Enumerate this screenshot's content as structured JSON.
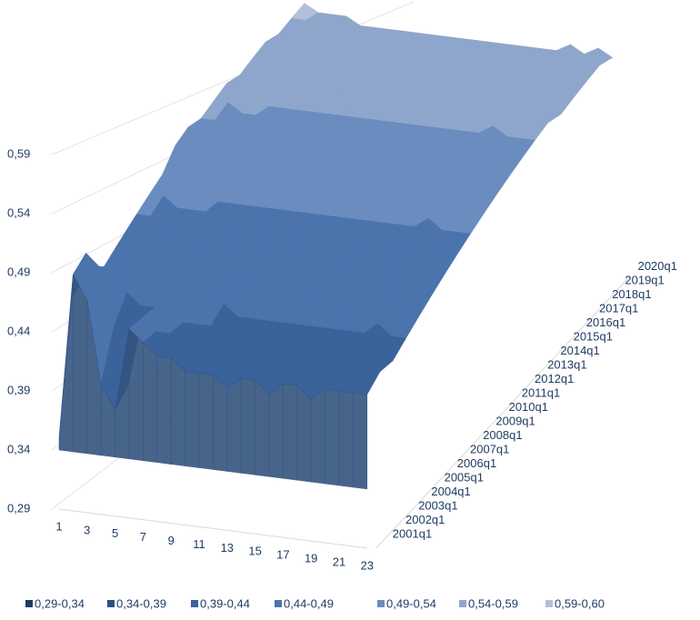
{
  "chart_data": {
    "type": "surface",
    "x": [
      1,
      null,
      3,
      null,
      5,
      null,
      7,
      null,
      9,
      null,
      11,
      null,
      13,
      null,
      15,
      null,
      17,
      null,
      19,
      null,
      21,
      null,
      23
    ],
    "y": [
      "2001q1",
      "2002q1",
      "2003q1",
      "2004q1",
      "2005q1",
      "2006q1",
      "2007q1",
      "2008q1",
      "2009q1",
      "2010q1",
      "2011q1",
      "2012q1",
      "2013q1",
      "2014q1",
      "2015q1",
      "2016q1",
      "2017q1",
      "2018q1",
      "2019q1",
      "2020q1"
    ],
    "zlim": [
      0.29,
      0.6
    ],
    "zticks": [
      {
        "value": 0.29,
        "label": "0,29"
      },
      {
        "value": 0.34,
        "label": "0,34"
      },
      {
        "value": 0.39,
        "label": "0,39"
      },
      {
        "value": 0.44,
        "label": "0,44"
      },
      {
        "value": 0.49,
        "label": "0,49"
      },
      {
        "value": 0.54,
        "label": "0,54"
      },
      {
        "value": 0.59,
        "label": "0,59"
      }
    ],
    "grid": true,
    "legend_position": "bottom",
    "bands": [
      {
        "label": "0,29-0,34",
        "from": 0.29,
        "to": 0.34,
        "color": "#1f3b63"
      },
      {
        "label": "0,34-0,39",
        "from": 0.34,
        "to": 0.39,
        "color": "#2b4f82"
      },
      {
        "label": "0,39-0,44",
        "from": 0.39,
        "to": 0.44,
        "color": "#3a629b"
      },
      {
        "label": "0,44-0,49",
        "from": 0.44,
        "to": 0.49,
        "color": "#4b74ad"
      },
      {
        "label": "0,49-0,54",
        "from": 0.49,
        "to": 0.54,
        "color": "#6a8cbf"
      },
      {
        "label": "0,54-0,59",
        "from": 0.54,
        "to": 0.59,
        "color": "#8fa6cc"
      },
      {
        "label": "0,59-0,60",
        "from": 0.59,
        "to": 0.6,
        "color": "#b3bfd6"
      }
    ],
    "z": [
      [
        0.35,
        0.49,
        0.47,
        0.4,
        0.38,
        0.45,
        0.44,
        0.43,
        0.43,
        0.42,
        0.42,
        0.42,
        0.41,
        0.42,
        0.42,
        0.41,
        0.42,
        0.42,
        0.41,
        0.42,
        0.42,
        0.42,
        0.42
      ],
      [
        0.46,
        0.5,
        0.46,
        0.44,
        0.39,
        0.45,
        0.44,
        0.44,
        0.43,
        0.43,
        0.43,
        0.42,
        0.42,
        0.43,
        0.42,
        0.42,
        0.43,
        0.42,
        0.42,
        0.43,
        0.42,
        0.43,
        0.43
      ],
      [
        0.47,
        0.48,
        0.45,
        0.46,
        0.45,
        0.45,
        0.45,
        0.44,
        0.44,
        0.44,
        0.43,
        0.43,
        0.43,
        0.43,
        0.43,
        0.43,
        0.43,
        0.43,
        0.43,
        0.43,
        0.43,
        0.44,
        0.43
      ],
      [
        0.46,
        0.47,
        0.46,
        0.47,
        0.46,
        0.46,
        0.45,
        0.45,
        0.45,
        0.45,
        0.44,
        0.44,
        0.44,
        0.44,
        0.44,
        0.44,
        0.44,
        0.44,
        0.44,
        0.44,
        0.45,
        0.44,
        0.44
      ],
      [
        0.47,
        0.48,
        0.47,
        0.47,
        0.47,
        0.46,
        0.46,
        0.46,
        0.46,
        0.45,
        0.45,
        0.45,
        0.45,
        0.45,
        0.45,
        0.45,
        0.45,
        0.45,
        0.45,
        0.45,
        0.46,
        0.45,
        0.45
      ],
      [
        0.48,
        0.48,
        0.48,
        0.47,
        0.47,
        0.47,
        0.47,
        0.47,
        0.46,
        0.46,
        0.46,
        0.46,
        0.46,
        0.46,
        0.46,
        0.46,
        0.46,
        0.46,
        0.46,
        0.46,
        0.47,
        0.46,
        0.46
      ],
      [
        0.49,
        0.49,
        0.48,
        0.48,
        0.48,
        0.48,
        0.47,
        0.47,
        0.47,
        0.47,
        0.47,
        0.47,
        0.47,
        0.47,
        0.47,
        0.47,
        0.47,
        0.47,
        0.47,
        0.48,
        0.47,
        0.47,
        0.47
      ],
      [
        0.5,
        0.5,
        0.49,
        0.49,
        0.49,
        0.48,
        0.48,
        0.48,
        0.48,
        0.48,
        0.48,
        0.48,
        0.48,
        0.48,
        0.48,
        0.48,
        0.48,
        0.48,
        0.48,
        0.49,
        0.48,
        0.48,
        0.48
      ],
      [
        0.51,
        0.51,
        0.5,
        0.5,
        0.49,
        0.49,
        0.49,
        0.49,
        0.49,
        0.49,
        0.49,
        0.49,
        0.49,
        0.49,
        0.49,
        0.49,
        0.49,
        0.49,
        0.49,
        0.5,
        0.49,
        0.49,
        0.49
      ],
      [
        0.53,
        0.52,
        0.51,
        0.51,
        0.5,
        0.5,
        0.5,
        0.5,
        0.5,
        0.5,
        0.5,
        0.5,
        0.5,
        0.5,
        0.5,
        0.5,
        0.5,
        0.5,
        0.5,
        0.51,
        0.5,
        0.5,
        0.5
      ],
      [
        0.54,
        0.53,
        0.52,
        0.52,
        0.51,
        0.51,
        0.51,
        0.51,
        0.51,
        0.51,
        0.51,
        0.51,
        0.51,
        0.51,
        0.51,
        0.51,
        0.51,
        0.51,
        0.51,
        0.52,
        0.51,
        0.51,
        0.51
      ],
      [
        0.54,
        0.54,
        0.53,
        0.53,
        0.52,
        0.52,
        0.52,
        0.52,
        0.52,
        0.52,
        0.52,
        0.52,
        0.52,
        0.52,
        0.52,
        0.52,
        0.52,
        0.52,
        0.52,
        0.53,
        0.52,
        0.52,
        0.52
      ],
      [
        0.55,
        0.55,
        0.54,
        0.54,
        0.53,
        0.53,
        0.53,
        0.53,
        0.53,
        0.53,
        0.53,
        0.53,
        0.53,
        0.53,
        0.53,
        0.53,
        0.53,
        0.53,
        0.53,
        0.54,
        0.53,
        0.53,
        0.53
      ],
      [
        0.56,
        0.55,
        0.55,
        0.54,
        0.54,
        0.54,
        0.54,
        0.54,
        0.54,
        0.54,
        0.54,
        0.54,
        0.54,
        0.54,
        0.54,
        0.54,
        0.54,
        0.54,
        0.54,
        0.55,
        0.54,
        0.54,
        0.54
      ],
      [
        0.56,
        0.56,
        0.55,
        0.55,
        0.55,
        0.55,
        0.55,
        0.55,
        0.55,
        0.55,
        0.55,
        0.55,
        0.55,
        0.55,
        0.55,
        0.55,
        0.55,
        0.55,
        0.55,
        0.56,
        0.55,
        0.55,
        0.55
      ],
      [
        0.57,
        0.57,
        0.56,
        0.56,
        0.56,
        0.55,
        0.55,
        0.55,
        0.55,
        0.55,
        0.55,
        0.55,
        0.55,
        0.55,
        0.55,
        0.55,
        0.55,
        0.55,
        0.55,
        0.56,
        0.55,
        0.56,
        0.55
      ],
      [
        0.58,
        0.57,
        0.57,
        0.57,
        0.56,
        0.56,
        0.56,
        0.56,
        0.56,
        0.56,
        0.56,
        0.56,
        0.56,
        0.56,
        0.56,
        0.56,
        0.56,
        0.56,
        0.56,
        0.57,
        0.56,
        0.57,
        0.56
      ],
      [
        0.58,
        0.58,
        0.58,
        0.57,
        0.57,
        0.57,
        0.57,
        0.57,
        0.57,
        0.57,
        0.57,
        0.57,
        0.57,
        0.57,
        0.57,
        0.57,
        0.57,
        0.57,
        0.57,
        0.58,
        0.57,
        0.58,
        0.57
      ],
      [
        0.59,
        0.59,
        0.58,
        0.58,
        0.58,
        0.58,
        0.58,
        0.58,
        0.58,
        0.58,
        0.58,
        0.58,
        0.58,
        0.58,
        0.58,
        0.58,
        0.58,
        0.58,
        0.58,
        0.59,
        0.58,
        0.58,
        0.58
      ],
      [
        0.6,
        0.59,
        0.59,
        0.59,
        0.58,
        0.58,
        0.58,
        0.58,
        0.58,
        0.58,
        0.58,
        0.58,
        0.58,
        0.58,
        0.58,
        0.58,
        0.58,
        0.58,
        0.58,
        0.59,
        0.58,
        0.59,
        0.58
      ]
    ]
  }
}
